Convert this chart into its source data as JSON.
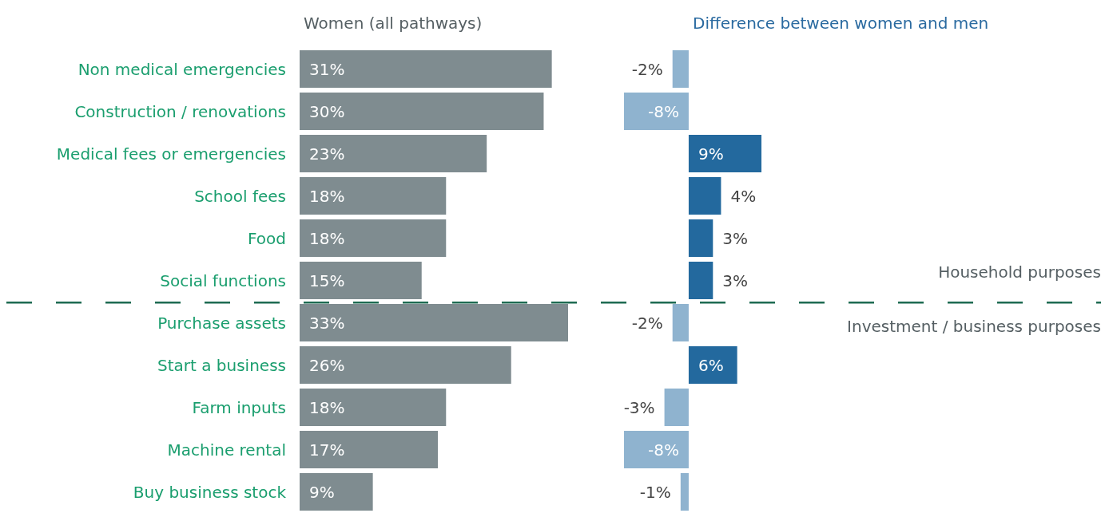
{
  "chart_data": [
    {
      "type": "bar",
      "orientation": "horizontal",
      "title": "Women (all pathways)",
      "categories": [
        "Non medical emergencies",
        "Construction / renovations",
        "Medical fees or emergencies",
        "School fees",
        "Food",
        "Social functions",
        "Purchase assets",
        "Start a business",
        "Farm inputs",
        "Machine rental",
        "Buy business stock"
      ],
      "values": [
        31,
        30,
        23,
        18,
        18,
        15,
        33,
        26,
        18,
        17,
        9
      ],
      "color": "#7f8c90",
      "value_labels": [
        "31%",
        "30%",
        "23%",
        "18%",
        "18%",
        "15%",
        "33%",
        "26%",
        "18%",
        "17%",
        "9%"
      ]
    },
    {
      "type": "bar",
      "orientation": "horizontal",
      "title": "Difference between women and men",
      "categories": [
        null,
        null,
        null,
        null,
        null,
        null,
        null,
        null,
        null,
        null,
        null
      ],
      "values": [
        -2,
        -8,
        9,
        4,
        3,
        3,
        -2,
        6,
        -3,
        -8,
        -1
      ],
      "colors": [
        "#8fb3cf",
        "#8fb3cf",
        "#23699e",
        "#23699e",
        "#23699e",
        "#23699e",
        "#8fb3cf",
        "#23699e",
        "#8fb3cf",
        "#8fb3cf",
        "#8fb3cf"
      ],
      "value_labels": [
        "-2%",
        "-8%",
        "9%",
        "4%",
        "3%",
        "3%",
        "-2%",
        "6%",
        "-3%",
        "-8%",
        "-1%"
      ],
      "annotations": [
        "Household purposes",
        "Investment / business purposes"
      ]
    }
  ]
}
